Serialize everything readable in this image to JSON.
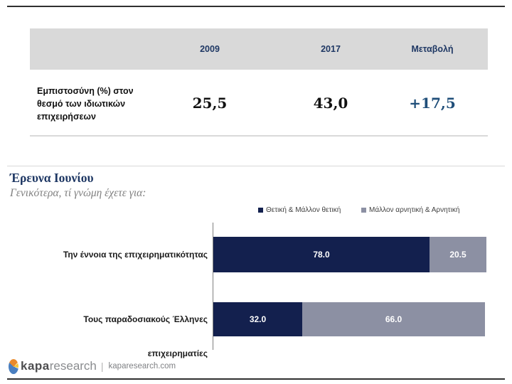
{
  "table": {
    "columns": [
      "2009",
      "2017",
      "Μεταβολή"
    ],
    "row_label_lines": [
      "Εμπιστοσύνη (%) στον",
      "θεσμό των ιδιωτικών",
      "επιχειρήσεων"
    ],
    "values": [
      "25,5",
      "43,0",
      "+17,5"
    ],
    "header_bg": "#d9d9d9",
    "header_text_color": "#1f3864",
    "change_value_color": "#1f4e79"
  },
  "section": {
    "title": "Έρευνα Ιουνίου",
    "subtitle": "Γενικότερα, τί γνώμη έχετε για:"
  },
  "chart_data": {
    "type": "bar",
    "orientation": "horizontal",
    "stacked": true,
    "x_max": 100,
    "grid": false,
    "legend_position": "top",
    "categories": [
      "Την έννοια της επιχειρηματικότητας",
      "Τους παραδοσιακούς Έλληνες επιχειρηματίες"
    ],
    "series": [
      {
        "name": "Θετική & Μάλλον θετική",
        "color": "#13204e",
        "values": [
          78.0,
          32.0
        ]
      },
      {
        "name": "Μάλλον αρνητική & Αρνητική",
        "color": "#8c90a3",
        "values": [
          20.5,
          66.0
        ]
      }
    ],
    "value_labels": [
      [
        "78.0",
        "20.5"
      ],
      [
        "32.0",
        "66.0"
      ]
    ]
  },
  "footer": {
    "logo_bold": "kapa",
    "logo_light": "research",
    "separator": "|",
    "url": "kaparesearch.com",
    "logo_colors": {
      "orange": "#e98a2b",
      "yellow": "#f5c63c",
      "blue": "#4a7fc0"
    }
  }
}
